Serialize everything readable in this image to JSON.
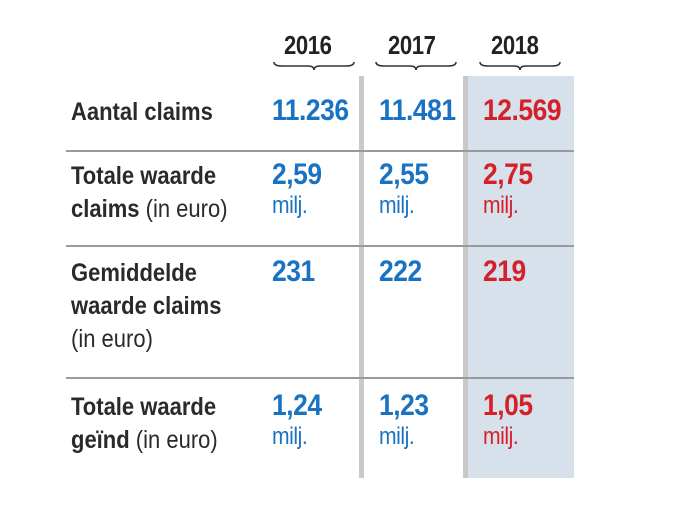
{
  "colors": {
    "year_blue": "#1a73c2",
    "year_red": "#d62029",
    "highlight_column": "#d6e1ec",
    "label_text": "#2a2a2a"
  },
  "years": [
    "2016",
    "2017",
    "2018"
  ],
  "rows": [
    {
      "label_bold": "Aantal claims",
      "label_normal": "",
      "label_line2_bold": "",
      "label_line2_normal": "",
      "label_line3": "",
      "values": [
        {
          "main": "11.236",
          "unit": ""
        },
        {
          "main": "11.481",
          "unit": ""
        },
        {
          "main": "12.569",
          "unit": ""
        }
      ]
    },
    {
      "label_bold": "Totale waarde",
      "label_normal": "",
      "label_line2_bold": "claims",
      "label_line2_normal": " (in euro)",
      "label_line3": "",
      "values": [
        {
          "main": "2,59",
          "unit": "milj."
        },
        {
          "main": "2,55",
          "unit": "milj."
        },
        {
          "main": "2,75",
          "unit": "milj."
        }
      ]
    },
    {
      "label_bold": "Gemiddelde",
      "label_normal": "",
      "label_line2_bold": "waarde claims",
      "label_line2_normal": "",
      "label_line3": "(in euro)",
      "values": [
        {
          "main": "231",
          "unit": ""
        },
        {
          "main": "222",
          "unit": ""
        },
        {
          "main": "219",
          "unit": ""
        }
      ]
    },
    {
      "label_bold": "Totale waarde",
      "label_normal": "",
      "label_line2_bold": "geïnd",
      "label_line2_normal": " (in euro)",
      "label_line3": "",
      "values": [
        {
          "main": "1,24",
          "unit": "milj."
        },
        {
          "main": "1,23",
          "unit": "milj."
        },
        {
          "main": "1,05",
          "unit": "milj."
        }
      ]
    }
  ]
}
